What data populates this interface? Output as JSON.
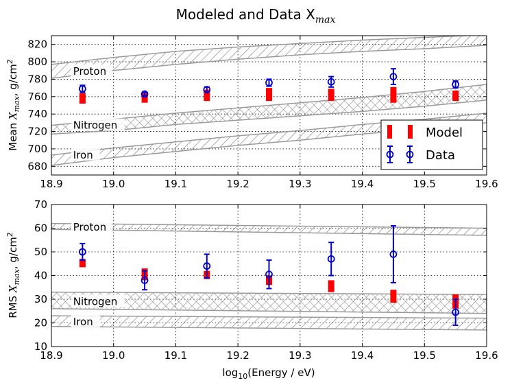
{
  "chart_data": [
    {
      "type": "scatter",
      "title": "Modeled and Data X",
      "title_sub": "max",
      "xlabel_pre": "log",
      "xlabel_sub": "10",
      "xlabel_post": "(Energy / eV)",
      "ylabel_pre": "Mean ",
      "ylabel_var": "X",
      "ylabel_sub": "max",
      "ylabel_post": ", g/cm",
      "ylabel_sup": "2",
      "xlim": [
        18.9,
        19.6
      ],
      "ylim": [
        670,
        830
      ],
      "xticks": [
        "18.9",
        "19.0",
        "19.1",
        "19.2",
        "19.3",
        "19.4",
        "19.5",
        "19.6"
      ],
      "yticks": [
        "680",
        "700",
        "720",
        "740",
        "760",
        "780",
        "800",
        "820"
      ],
      "legend": {
        "position": "lower-right",
        "entries": [
          "Model",
          "Data"
        ]
      },
      "bands": [
        {
          "name": "Proton",
          "lower": [
            [
              18.9,
              781
            ],
            [
              19.0,
              790
            ],
            [
              19.1,
              797
            ],
            [
              19.2,
              803
            ],
            [
              19.3,
              808
            ],
            [
              19.4,
              812
            ],
            [
              19.5,
              815
            ],
            [
              19.6,
              819
            ]
          ],
          "upper": [
            [
              18.9,
              797
            ],
            [
              19.0,
              805
            ],
            [
              19.1,
              812
            ],
            [
              19.2,
              817
            ],
            [
              19.3,
              821
            ],
            [
              19.4,
              825
            ],
            [
              19.5,
              828
            ],
            [
              19.6,
              831
            ]
          ],
          "hatch": "diag"
        },
        {
          "name": "Nitrogen",
          "lower": [
            [
              18.9,
              717
            ],
            [
              19.0,
              721
            ],
            [
              19.1,
              728
            ],
            [
              19.2,
              733
            ],
            [
              19.3,
              738
            ],
            [
              19.4,
              743
            ],
            [
              19.5,
              749
            ],
            [
              19.6,
              756
            ]
          ],
          "upper": [
            [
              18.9,
              727
            ],
            [
              19.0,
              734
            ],
            [
              19.1,
              741
            ],
            [
              19.2,
              747
            ],
            [
              19.3,
              753
            ],
            [
              19.4,
              759
            ],
            [
              19.5,
              766
            ],
            [
              19.6,
              774
            ]
          ],
          "hatch": "cross"
        },
        {
          "name": "Iron",
          "lower": [
            [
              18.9,
              681
            ],
            [
              19.0,
              690
            ],
            [
              19.1,
              697
            ],
            [
              19.2,
              704
            ],
            [
              19.3,
              710
            ],
            [
              19.4,
              717
            ],
            [
              19.5,
              723
            ],
            [
              19.6,
              730
            ]
          ],
          "upper": [
            [
              18.9,
              693
            ],
            [
              19.0,
              701
            ],
            [
              19.1,
              708
            ],
            [
              19.2,
              715
            ],
            [
              19.3,
              721
            ],
            [
              19.4,
              728
            ],
            [
              19.5,
              734
            ],
            [
              19.6,
              741
            ]
          ],
          "hatch": "diag"
        }
      ],
      "band_labels": [
        {
          "name": "Proton",
          "x": 18.935,
          "y": 789
        },
        {
          "name": "Nitrogen",
          "x": 18.935,
          "y": 727
        },
        {
          "name": "Iron",
          "x": 18.935,
          "y": 693
        }
      ],
      "series": [
        {
          "name": "Model",
          "x": [
            18.95,
            19.05,
            19.15,
            19.25,
            19.35,
            19.45,
            19.55
          ],
          "low": [
            752,
            753,
            755,
            755,
            755,
            753,
            755
          ],
          "high": [
            764,
            764,
            768,
            770,
            769,
            771,
            767
          ]
        },
        {
          "name": "Data",
          "x": [
            18.95,
            19.05,
            19.15,
            19.25,
            19.35,
            19.45,
            19.55
          ],
          "y": [
            769,
            763,
            768,
            776,
            777,
            783,
            774
          ],
          "err": [
            4,
            2,
            3,
            4,
            6,
            9,
            4
          ]
        }
      ]
    },
    {
      "type": "scatter",
      "xlabel_pre": "log",
      "xlabel_sub": "10",
      "xlabel_post": "(Energy / eV)",
      "ylabel_pre": "RMS ",
      "ylabel_var": "X",
      "ylabel_sub": "max",
      "ylabel_post": ", g/cm",
      "ylabel_sup": "2",
      "xlim": [
        18.9,
        19.6
      ],
      "ylim": [
        10,
        70
      ],
      "xticks": [
        "18.9",
        "19.0",
        "19.1",
        "19.2",
        "19.3",
        "19.4",
        "19.5",
        "19.6"
      ],
      "yticks": [
        "10",
        "20",
        "30",
        "40",
        "50",
        "60",
        "70"
      ],
      "bands": [
        {
          "name": "Proton",
          "lower": [
            [
              18.9,
              59.5
            ],
            [
              19.6,
              57
            ]
          ],
          "upper": [
            [
              18.9,
              62
            ],
            [
              19.6,
              60
            ]
          ],
          "hatch": "diag"
        },
        {
          "name": "Nitrogen",
          "lower": [
            [
              18.9,
              26
            ],
            [
              19.6,
              24
            ]
          ],
          "upper": [
            [
              18.9,
              33
            ],
            [
              19.6,
              32
            ]
          ],
          "hatch": "cross"
        },
        {
          "name": "Iron",
          "lower": [
            [
              18.9,
              18.5
            ],
            [
              19.6,
              17
            ]
          ],
          "upper": [
            [
              18.9,
              23
            ],
            [
              19.6,
              22
            ]
          ],
          "hatch": "diag"
        }
      ],
      "band_labels": [
        {
          "name": "Proton",
          "x": 18.935,
          "y": 60.5
        },
        {
          "name": "Nitrogen",
          "x": 18.935,
          "y": 29
        },
        {
          "name": "Iron",
          "x": 18.935,
          "y": 20.5
        }
      ],
      "series": [
        {
          "name": "Model",
          "x": [
            18.95,
            19.05,
            19.15,
            19.25,
            19.35,
            19.45,
            19.55
          ],
          "low": [
            43.5,
            38,
            38.5,
            36,
            33,
            28.5,
            26
          ],
          "high": [
            47,
            43,
            42,
            40,
            38,
            34,
            32
          ]
        },
        {
          "name": "Data",
          "x": [
            18.95,
            19.05,
            19.15,
            19.25,
            19.35,
            19.45,
            19.55
          ],
          "y": [
            50,
            38,
            44,
            40.5,
            47,
            49,
            24.5
          ],
          "errlow": [
            3.5,
            4,
            5,
            6,
            7,
            12,
            5.5
          ],
          "errhigh": [
            3.5,
            4,
            5,
            6,
            7,
            12,
            5.5
          ]
        }
      ]
    }
  ],
  "colors": {
    "model": "#ff0000",
    "data": "#0000cc",
    "band_stroke": "#9a9a9a",
    "band_fill": "#c8c8c8"
  }
}
